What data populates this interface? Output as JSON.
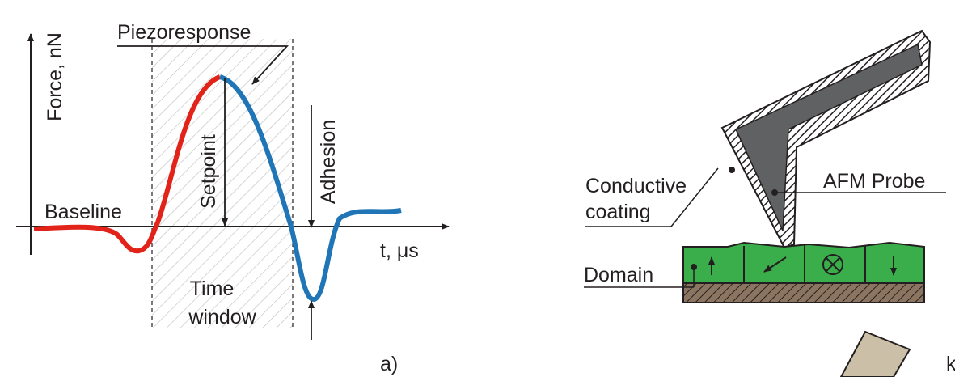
{
  "left_panel": {
    "y_axis_label": "Force, nN",
    "x_axis_label": "t, μs",
    "labels": {
      "piezoresponse": "Piezoresponse",
      "baseline": "Baseline",
      "setpoint": "Setpoint",
      "adhesion": "Adhesion",
      "time_window": [
        "Time",
        "window"
      ]
    },
    "panel_label": "a)"
  },
  "right_panel": {
    "conductive_coating": [
      "Conductive",
      "coating"
    ],
    "afm_probe": "AFM Probe",
    "domain": "Domain",
    "cropped_label": "k"
  }
}
